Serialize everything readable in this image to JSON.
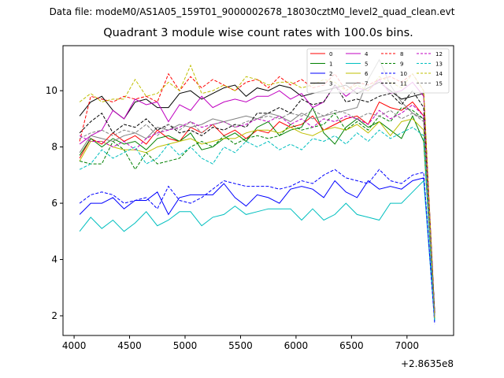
{
  "suptitle": "Data file: modeM0/AS1A05_159T01_9000002678_18030cztM0_level2_quad_clean.evt",
  "chart_data": {
    "type": "line",
    "title": "Quadrant 3 module wise count rates with 100.0s bins.",
    "xlabel": "",
    "ylabel": "",
    "x_offset_label": "+2.8635e8",
    "xlim": [
      3900,
      7420
    ],
    "ylim": [
      1.3,
      11.6
    ],
    "xticks": [
      4000,
      4500,
      5000,
      5500,
      6000,
      6500,
      7000
    ],
    "yticks": [
      2,
      4,
      6,
      8,
      10
    ],
    "legend": {
      "location": "top-right",
      "columns": 4
    },
    "x": [
      4050,
      4150,
      4250,
      4350,
      4450,
      4550,
      4650,
      4750,
      4850,
      4950,
      5050,
      5150,
      5250,
      5350,
      5450,
      5550,
      5650,
      5750,
      5850,
      5950,
      6050,
      6150,
      6250,
      6350,
      6450,
      6550,
      6650,
      6750,
      6850,
      6950,
      7050,
      7150,
      7250
    ],
    "series": [
      {
        "name": "0",
        "color": "#ff0000",
        "dash": "solid",
        "values": [
          7.6,
          8.3,
          8.1,
          8.5,
          8.2,
          8.4,
          8.1,
          8.6,
          8.3,
          8.2,
          8.7,
          8.5,
          8.8,
          8.4,
          8.6,
          8.3,
          8.6,
          8.5,
          8.9,
          8.7,
          8.8,
          9.1,
          8.6,
          8.8,
          9.0,
          9.1,
          8.8,
          9.6,
          9.4,
          9.3,
          9.6,
          9.1,
          2.0
        ]
      },
      {
        "name": "1",
        "color": "#008000",
        "dash": "solid",
        "values": [
          7.7,
          8.3,
          8.0,
          8.3,
          8.1,
          8.2,
          7.9,
          8.3,
          8.4,
          8.2,
          8.5,
          7.9,
          8.0,
          8.3,
          8.5,
          8.2,
          8.7,
          8.9,
          8.4,
          8.6,
          8.7,
          9.4,
          8.5,
          8.1,
          8.7,
          9.0,
          8.7,
          8.9,
          8.6,
          8.3,
          9.1,
          8.2,
          1.9
        ]
      },
      {
        "name": "2",
        "color": "#0000ff",
        "dash": "solid",
        "values": [
          5.6,
          6.0,
          6.0,
          6.2,
          5.8,
          6.1,
          6.1,
          6.4,
          5.6,
          6.2,
          6.3,
          6.3,
          6.3,
          6.7,
          6.2,
          5.9,
          6.3,
          6.2,
          6.0,
          6.5,
          6.6,
          6.5,
          6.2,
          6.8,
          6.4,
          6.2,
          6.8,
          6.5,
          6.6,
          6.5,
          6.8,
          6.9,
          1.8
        ]
      },
      {
        "name": "3",
        "color": "#000000",
        "dash": "solid",
        "values": [
          9.1,
          9.6,
          9.8,
          9.3,
          9.0,
          9.6,
          9.7,
          9.4,
          9.4,
          9.9,
          10.0,
          9.7,
          9.9,
          10.1,
          10.2,
          9.8,
          10.1,
          10.0,
          10.2,
          10.1,
          9.8,
          9.9,
          10.0,
          10.1,
          10.2,
          9.9,
          10.1,
          10.3,
          10.0,
          9.7,
          9.8,
          9.9,
          2.1
        ]
      },
      {
        "name": "4",
        "color": "#c000c0",
        "dash": "solid",
        "values": [
          8.1,
          8.4,
          8.6,
          9.3,
          9.0,
          9.7,
          9.5,
          9.6,
          8.9,
          9.5,
          9.3,
          9.8,
          9.4,
          9.6,
          9.7,
          9.6,
          9.8,
          9.8,
          10.0,
          9.7,
          9.9,
          9.4,
          9.6,
          10.2,
          9.8,
          10.1,
          10.0,
          10.4,
          9.9,
          10.0,
          10.3,
          9.8,
          2.0
        ]
      },
      {
        "name": "5",
        "color": "#00bfbf",
        "dash": "solid",
        "values": [
          5.0,
          5.5,
          5.1,
          5.4,
          5.0,
          5.3,
          5.7,
          5.2,
          5.4,
          5.7,
          5.7,
          5.2,
          5.5,
          5.6,
          5.9,
          5.6,
          5.7,
          5.8,
          5.8,
          5.8,
          5.4,
          5.8,
          5.4,
          5.6,
          6.0,
          5.6,
          5.5,
          5.4,
          6.0,
          6.0,
          6.4,
          6.8,
          1.8
        ]
      },
      {
        "name": "6",
        "color": "#bfbf00",
        "dash": "solid",
        "values": [
          7.5,
          8.2,
          8.2,
          8.0,
          7.9,
          7.9,
          7.8,
          8.0,
          8.1,
          8.2,
          8.3,
          8.1,
          8.2,
          8.3,
          8.3,
          8.5,
          8.6,
          8.6,
          8.5,
          8.7,
          8.5,
          8.4,
          8.6,
          8.7,
          8.6,
          8.8,
          8.5,
          8.9,
          8.4,
          8.9,
          9.0,
          8.6,
          1.9
        ]
      },
      {
        "name": "7",
        "color": "#808080",
        "dash": "solid",
        "values": [
          7.8,
          8.4,
          8.3,
          8.2,
          8.4,
          8.5,
          8.3,
          8.7,
          8.6,
          8.8,
          8.7,
          8.8,
          9.0,
          8.9,
          9.0,
          9.1,
          9.0,
          9.2,
          9.1,
          8.9,
          9.2,
          9.0,
          9.1,
          9.2,
          9.3,
          9.4,
          10.4,
          11.1,
          10.2,
          9.6,
          9.2,
          9.0,
          2.0
        ]
      },
      {
        "name": "8",
        "color": "#ff0000",
        "dash": "dashed",
        "values": [
          8.2,
          9.8,
          9.7,
          9.6,
          9.8,
          9.7,
          9.8,
          9.6,
          10.6,
          10.0,
          10.5,
          10.1,
          10.4,
          10.2,
          10.0,
          10.3,
          10.4,
          10.1,
          10.5,
          10.2,
          10.4,
          10.1,
          10.2,
          10.6,
          10.0,
          10.3,
          10.2,
          10.4,
          10.5,
          10.3,
          10.6,
          10.0,
          2.0
        ]
      },
      {
        "name": "9",
        "color": "#008000",
        "dash": "dashed",
        "values": [
          7.5,
          7.4,
          7.4,
          8.2,
          7.9,
          7.2,
          7.8,
          7.4,
          7.5,
          7.6,
          8.0,
          8.2,
          8.0,
          8.4,
          8.1,
          8.3,
          8.4,
          8.3,
          8.4,
          8.8,
          8.6,
          8.7,
          8.8,
          9.2,
          8.6,
          8.9,
          8.6,
          9.1,
          8.9,
          9.4,
          9.3,
          9.0,
          1.9
        ]
      },
      {
        "name": "10",
        "color": "#0000ff",
        "dash": "dashed",
        "values": [
          6.0,
          6.3,
          6.4,
          6.3,
          6.0,
          6.1,
          6.2,
          5.8,
          6.6,
          6.1,
          6.0,
          6.2,
          6.5,
          6.8,
          6.7,
          6.6,
          6.6,
          6.6,
          6.5,
          6.6,
          6.8,
          6.7,
          7.0,
          7.2,
          6.9,
          6.8,
          6.7,
          7.2,
          6.8,
          6.7,
          7.0,
          7.1,
          1.7
        ]
      },
      {
        "name": "11",
        "color": "#000000",
        "dash": "dashed",
        "values": [
          8.5,
          8.9,
          9.2,
          8.5,
          8.8,
          8.7,
          9.0,
          8.6,
          8.8,
          8.5,
          8.6,
          8.4,
          8.7,
          8.6,
          8.8,
          8.7,
          9.2,
          9.2,
          9.4,
          9.2,
          9.7,
          9.5,
          9.6,
          10.2,
          9.6,
          9.7,
          9.6,
          9.8,
          9.9,
          9.5,
          10.0,
          9.4,
          2.1
        ]
      },
      {
        "name": "12",
        "color": "#c000c0",
        "dash": "dashed",
        "values": [
          8.4,
          8.2,
          8.2,
          8.0,
          8.2,
          7.9,
          8.3,
          8.5,
          8.6,
          8.7,
          8.9,
          8.7,
          8.8,
          8.9,
          8.7,
          8.8,
          9.0,
          8.9,
          9.1,
          8.8,
          9.0,
          8.7,
          9.0,
          8.9,
          9.1,
          9.0,
          8.8,
          9.3,
          9.0,
          9.2,
          9.5,
          9.1,
          2.0
        ]
      },
      {
        "name": "13",
        "color": "#00bfbf",
        "dash": "dashed",
        "values": [
          7.2,
          7.4,
          7.9,
          7.6,
          7.8,
          8.0,
          7.4,
          7.6,
          8.1,
          7.7,
          8.0,
          7.6,
          7.4,
          8.0,
          7.8,
          8.2,
          8.0,
          8.2,
          7.9,
          8.1,
          7.9,
          8.3,
          8.2,
          8.4,
          8.1,
          8.5,
          8.2,
          8.6,
          8.3,
          8.5,
          8.7,
          8.4,
          1.8
        ]
      },
      {
        "name": "14",
        "color": "#bfbf00",
        "dash": "dashed",
        "values": [
          9.6,
          9.9,
          9.6,
          9.7,
          9.7,
          10.4,
          9.8,
          9.9,
          10.3,
          10.0,
          10.9,
          9.9,
          10.0,
          10.2,
          10.0,
          10.5,
          10.4,
          10.2,
          10.3,
          10.3,
          10.1,
          10.2,
          10.4,
          10.3,
          10.0,
          10.2,
          10.0,
          10.5,
          10.3,
          10.1,
          10.6,
          10.0,
          1.9
        ]
      },
      {
        "name": "15",
        "color": "#808080",
        "dash": "dashed",
        "values": [
          8.3,
          8.5,
          8.6,
          8.4,
          8.6,
          8.5,
          8.8,
          8.4,
          8.8,
          8.6,
          8.9,
          8.5,
          8.8,
          8.9,
          8.7,
          8.9,
          9.0,
          9.1,
          9.0,
          9.2,
          9.1,
          9.3,
          9.1,
          9.3,
          9.2,
          9.0,
          9.2,
          9.1,
          9.3,
          9.0,
          9.2,
          8.9,
          2.0
        ]
      }
    ]
  }
}
